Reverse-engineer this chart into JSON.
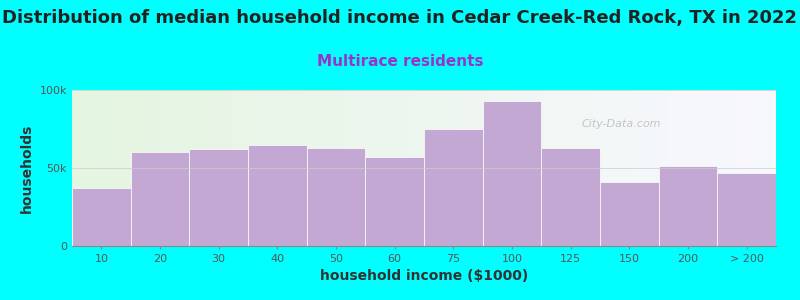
{
  "title": "Distribution of median household income in Cedar Creek-Red Rock, TX in 2022",
  "subtitle": "Multirace residents",
  "xlabel": "household income ($1000)",
  "ylabel": "households",
  "background_color": "#00FFFF",
  "bar_color": "#c4a8d4",
  "bar_edge_color": "#ffffff",
  "categories": [
    "10",
    "20",
    "30",
    "40",
    "50",
    "60",
    "75",
    "100",
    "125",
    "150",
    "200",
    "> 200"
  ],
  "values": [
    37000,
    60000,
    62000,
    65000,
    63000,
    57000,
    75000,
    93000,
    63000,
    41000,
    51000,
    47000
  ],
  "ylim": [
    0,
    100000
  ],
  "ytick_labels": [
    "0",
    "50k",
    "100k"
  ],
  "title_fontsize": 13,
  "subtitle_fontsize": 11,
  "subtitle_color": "#9933cc",
  "axis_label_fontsize": 10,
  "tick_fontsize": 8,
  "watermark_text": "City-Data.com",
  "title_color": "#222222"
}
